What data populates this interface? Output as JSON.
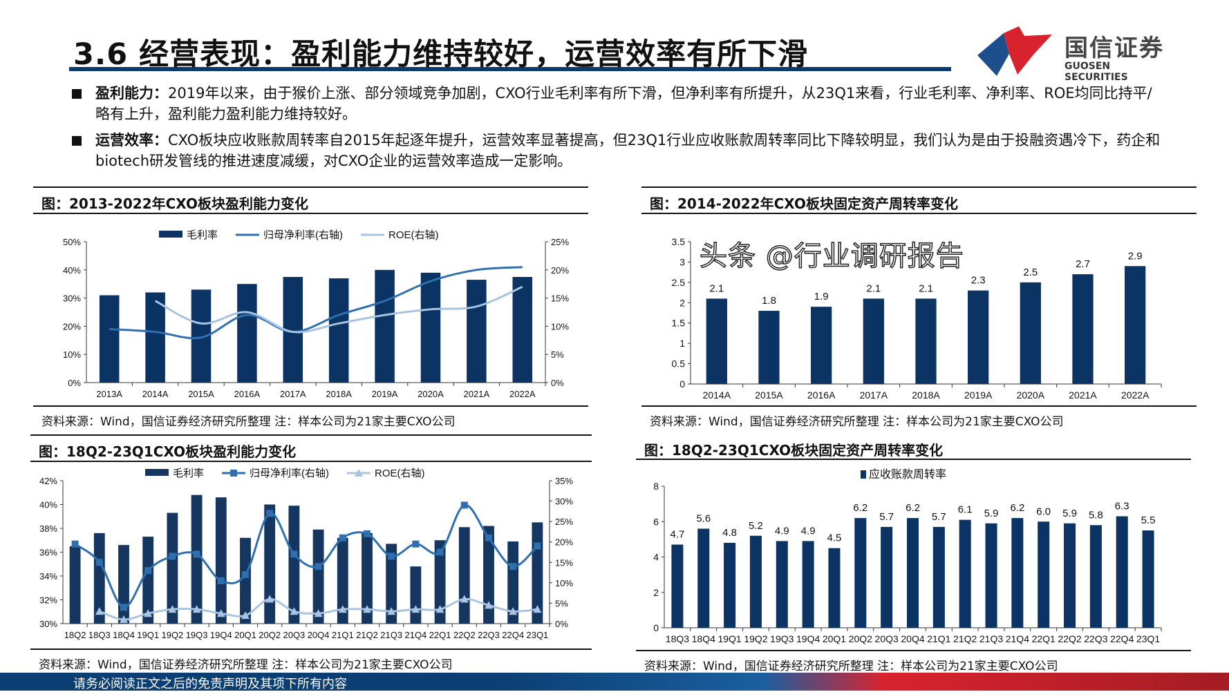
{
  "header": {
    "title": "3.6 经营表现：盈利能力维持较好，运营效率有所下滑",
    "logo_cn": "国信证券",
    "logo_en": "GUOSEN SECURITIES",
    "brand_blue": "#0b3b6e",
    "brand_red": "#d8232f"
  },
  "bullets": [
    {
      "head": "盈利能力：",
      "body": "2019年以来，由于猴价上涨、部分领域竞争加剧，CXO行业毛利率有所下滑，但净利率有所提升，从23Q1来看，行业毛利率、净利率、ROE均同比持平/略有上升，盈利能力盈利能力维持较好。"
    },
    {
      "head": "运营效率：",
      "body": "CXO板块应收账款周转率自2015年起逐年提升，运营效率显著提高，但23Q1行业应收账款周转率同比下降较明显，我们认为是由于投融资遇冷下，药企和biotech研发管线的推进速度减缓，对CXO企业的运营效率造成一定影响。"
    }
  ],
  "panels": [
    {
      "title": "图：2013-2022年CXO板块盈利能力变化",
      "source": "资料来源：Wind，国信证券经济研究所整理 注：样本公司为21家主要CXO公司"
    },
    {
      "title": "图：2014-2022年CXO板块固定资产周转率变化",
      "source": "资料来源：Wind，国信证券经济研究所整理 注：样本公司为21家主要CXO公司"
    },
    {
      "title": "图：18Q2-23Q1CXO板块盈利能力变化",
      "source": "资料来源：Wind，国信证券经济研究所整理 注：样本公司为21家主要CXO公司"
    },
    {
      "title": "图：18Q2-23Q1CXO板块固定资产周转率变化",
      "source": "资料来源：Wind，国信证券经济研究所整理 注：样本公司为21家主要CXO公司"
    }
  ],
  "footer": {
    "disclaimer": "请务必阅读正文之后的免责声明及其项下所有内容",
    "watermark": "头条 @行业调研报告"
  },
  "chart_data": [
    {
      "type": "bar+line",
      "categories": [
        "2013A",
        "2014A",
        "2015A",
        "2016A",
        "2017A",
        "2018A",
        "2019A",
        "2020A",
        "2021A",
        "2022A"
      ],
      "yticks_left": [
        "0%",
        "10%",
        "20%",
        "30%",
        "40%",
        "50%"
      ],
      "ylim_left": [
        0,
        50
      ],
      "yticks_right": [
        "0%",
        "5%",
        "10%",
        "15%",
        "20%",
        "25%"
      ],
      "ylim_right": [
        0,
        25
      ],
      "legend": "top",
      "series": [
        {
          "name": "毛利率",
          "kind": "bar",
          "axis": "left",
          "color": "#0b3363",
          "values": [
            31,
            32,
            33,
            35,
            37.5,
            37,
            40,
            39,
            36.5,
            37.5
          ]
        },
        {
          "name": "归母净利率(右轴)",
          "kind": "line",
          "axis": "right",
          "color": "#2e6fb0",
          "values": [
            9.5,
            9,
            8,
            12,
            9,
            12,
            14.5,
            18,
            20,
            20.5
          ]
        },
        {
          "name": "ROE(右轴)",
          "kind": "line",
          "axis": "right",
          "color": "#a8c4e2",
          "values": [
            null,
            14.5,
            10.5,
            12.5,
            9,
            10.5,
            12,
            13,
            13.5,
            17
          ]
        }
      ]
    },
    {
      "type": "bar",
      "categories": [
        "2014A",
        "2015A",
        "2016A",
        "2017A",
        "2018A",
        "2019A",
        "2020A",
        "2021A",
        "2022A"
      ],
      "yticks_left": [
        "0",
        "0.5",
        "1",
        "1.5",
        "2",
        "2.5",
        "3",
        "3.5"
      ],
      "ylim_left": [
        0,
        3.5
      ],
      "series": [
        {
          "kind": "bar",
          "axis": "left",
          "color": "#0b3363",
          "values": [
            2.1,
            1.8,
            1.9,
            2.1,
            2.1,
            2.3,
            2.5,
            2.7,
            2.9
          ],
          "labels": [
            "2.1",
            "1.8",
            "1.9",
            "2.1",
            "2.1",
            "2.3",
            "2.5",
            "2.7",
            "2.9"
          ]
        }
      ]
    },
    {
      "type": "bar+line",
      "categories": [
        "18Q2",
        "18Q3",
        "18Q4",
        "19Q1",
        "19Q2",
        "19Q3",
        "19Q4",
        "20Q1",
        "20Q2",
        "20Q3",
        "20Q4",
        "21Q1",
        "21Q2",
        "21Q3",
        "21Q4",
        "22Q1",
        "22Q2",
        "22Q3",
        "22Q4",
        "23Q1"
      ],
      "yticks_left": [
        "30%",
        "32%",
        "34%",
        "36%",
        "38%",
        "40%",
        "42%"
      ],
      "ylim_left": [
        30,
        42
      ],
      "yticks_right": [
        "0%",
        "5%",
        "10%",
        "15%",
        "20%",
        "25%",
        "30%",
        "35%"
      ],
      "ylim_right": [
        0,
        35
      ],
      "legend": "top",
      "series": [
        {
          "name": "毛利率",
          "kind": "bar",
          "axis": "left",
          "color": "#14365f",
          "values": [
            36.5,
            37.6,
            36.6,
            37.3,
            39.3,
            40.8,
            40.6,
            37.2,
            40.0,
            39.9,
            37.9,
            37.2,
            37.6,
            36.7,
            34.8,
            37.0,
            38.1,
            38.2,
            36.9,
            38.5
          ]
        },
        {
          "name": "归母净利率(右轴)",
          "kind": "line",
          "marker": "square",
          "axis": "right",
          "color": "#2e6fb0",
          "values": [
            19.5,
            15,
            4,
            13,
            16.5,
            17,
            10.5,
            12,
            27,
            17,
            14,
            21,
            22,
            16.5,
            19.5,
            17.5,
            29,
            21,
            14,
            19
          ]
        },
        {
          "name": "ROE(右轴)",
          "kind": "line",
          "marker": "triangle",
          "axis": "right",
          "color": "#a8c4e2",
          "values": [
            null,
            3,
            1,
            2.5,
            3.5,
            3.5,
            2.5,
            2,
            6,
            3,
            2.5,
            3.5,
            3.5,
            3,
            3.5,
            3.5,
            6,
            4.5,
            3,
            3.5
          ]
        }
      ]
    },
    {
      "type": "bar",
      "categories": [
        "18Q3",
        "18Q4",
        "19Q1",
        "19Q2",
        "19Q3",
        "19Q4",
        "20Q1",
        "20Q2",
        "20Q3",
        "20Q4",
        "21Q1",
        "21Q2",
        "21Q3",
        "21Q4",
        "22Q1",
        "22Q2",
        "22Q3",
        "22Q4",
        "23Q1"
      ],
      "yticks_left": [
        "0",
        "2",
        "4",
        "6",
        "8"
      ],
      "ylim_left": [
        0,
        8
      ],
      "legend": "top",
      "series": [
        {
          "name": "应收账款周转率",
          "kind": "bar",
          "axis": "left",
          "color": "#0b3363",
          "values": [
            4.7,
            5.6,
            4.8,
            5.2,
            4.9,
            4.9,
            4.5,
            6.2,
            5.7,
            6.2,
            5.7,
            6.1,
            5.9,
            6.2,
            6.0,
            5.9,
            5.8,
            6.3,
            5.5
          ],
          "labels": [
            "4.7",
            "5.6",
            "4.8",
            "5.2",
            "4.9",
            "4.9",
            "4.5",
            "6.2",
            "5.7",
            "6.2",
            "5.7",
            "6.1",
            "5.9",
            "6.2",
            "6.0",
            "5.9",
            "5.8",
            "6.3",
            "5.5"
          ]
        }
      ]
    }
  ]
}
